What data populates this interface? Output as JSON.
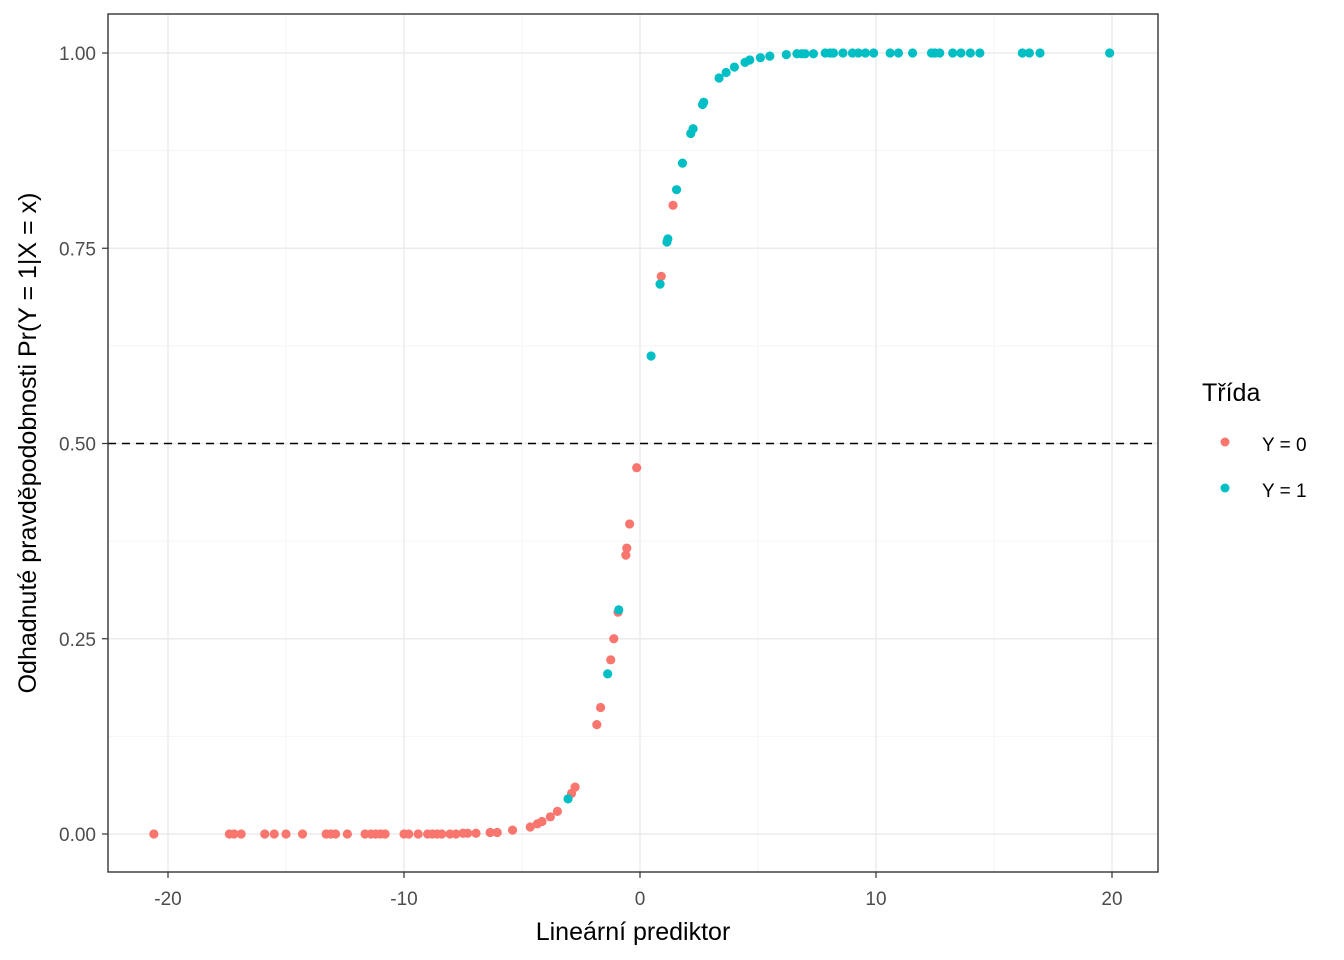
{
  "chart_data": {
    "type": "scatter",
    "xlabel": "Lineární prediktor",
    "ylabel": "Odhadnuté pravděpodobnosti Pr(Y = 1|X = x)",
    "xlim": [
      -22.5,
      22
    ],
    "ylim": [
      -0.05,
      1.05
    ],
    "x_ticks": [
      -20,
      -10,
      0,
      10,
      20
    ],
    "x_tick_labels": [
      "-20",
      "-10",
      "0",
      "10",
      "20"
    ],
    "y_ticks": [
      0,
      0.25,
      0.5,
      0.75,
      1
    ],
    "y_tick_labels": [
      "0.00",
      "0.25",
      "0.50",
      "0.75",
      "1.00"
    ],
    "grid": true,
    "reference_line": {
      "y": 0.5,
      "style": "dashed"
    },
    "legend": {
      "title": "Třída",
      "placement": "right",
      "entries": [
        {
          "label": "Y = 0",
          "color": "#F8766D"
        },
        {
          "label": "Y = 1",
          "color": "#00BFC4"
        }
      ]
    },
    "series": [
      {
        "name": "Y = 0",
        "color": "#F8766D",
        "points": [
          [
            -20.6,
            0
          ],
          [
            -17.4,
            0
          ],
          [
            -17.2,
            0
          ],
          [
            -16.9,
            0
          ],
          [
            -15.9,
            0
          ],
          [
            -15.5,
            0
          ],
          [
            -15.0,
            0
          ],
          [
            -14.3,
            0
          ],
          [
            -13.3,
            0
          ],
          [
            -13.1,
            0
          ],
          [
            -12.9,
            0
          ],
          [
            -12.4,
            0
          ],
          [
            -11.65,
            0
          ],
          [
            -11.4,
            0
          ],
          [
            -11.2,
            0
          ],
          [
            -11.0,
            0
          ],
          [
            -10.8,
            0
          ],
          [
            -10.0,
            0
          ],
          [
            -9.8,
            0
          ],
          [
            -9.4,
            0
          ],
          [
            -9.0,
            0
          ],
          [
            -8.8,
            0
          ],
          [
            -8.6,
            0
          ],
          [
            -8.4,
            0
          ],
          [
            -8.05,
            0
          ],
          [
            -7.8,
            0
          ],
          [
            -7.5,
            0.001
          ],
          [
            -7.3,
            0.001
          ],
          [
            -6.95,
            0.001
          ],
          [
            -6.35,
            0.002
          ],
          [
            -6.05,
            0.002
          ],
          [
            -5.4,
            0.005
          ],
          [
            -4.65,
            0.009
          ],
          [
            -4.35,
            0.013
          ],
          [
            -4.15,
            0.016
          ],
          [
            -3.8,
            0.022
          ],
          [
            -3.5,
            0.029
          ],
          [
            -2.9,
            0.052
          ],
          [
            -2.75,
            0.06
          ],
          [
            -1.83,
            0.14
          ],
          [
            -1.67,
            0.162
          ],
          [
            -1.24,
            0.223
          ],
          [
            -1.11,
            0.25
          ],
          [
            -0.93,
            0.284
          ],
          [
            -0.6,
            0.357
          ],
          [
            -0.56,
            0.366
          ],
          [
            -0.44,
            0.397
          ],
          [
            -0.14,
            0.469
          ],
          [
            0.9,
            0.714
          ],
          [
            1.4,
            0.805
          ]
        ]
      },
      {
        "name": "Y = 1",
        "color": "#00BFC4",
        "points": [
          [
            -3.05,
            0.045
          ],
          [
            -1.37,
            0.205
          ],
          [
            -0.9,
            0.287
          ],
          [
            0.47,
            0.612
          ],
          [
            0.85,
            0.704
          ],
          [
            1.14,
            0.758
          ],
          [
            1.18,
            0.762
          ],
          [
            1.55,
            0.825
          ],
          [
            1.8,
            0.859
          ],
          [
            2.15,
            0.897
          ],
          [
            2.25,
            0.903
          ],
          [
            2.65,
            0.934
          ],
          [
            2.7,
            0.937
          ],
          [
            3.35,
            0.968
          ],
          [
            3.65,
            0.975
          ],
          [
            4.0,
            0.982
          ],
          [
            4.45,
            0.988
          ],
          [
            4.65,
            0.991
          ],
          [
            5.1,
            0.994
          ],
          [
            5.5,
            0.996
          ],
          [
            6.2,
            0.998
          ],
          [
            6.65,
            0.999
          ],
          [
            6.85,
            0.999
          ],
          [
            7.0,
            0.999
          ],
          [
            7.35,
            0.999
          ],
          [
            7.85,
            1
          ],
          [
            8.05,
            1
          ],
          [
            8.2,
            1
          ],
          [
            8.6,
            1
          ],
          [
            9.0,
            1
          ],
          [
            9.25,
            1
          ],
          [
            9.55,
            1
          ],
          [
            9.9,
            1
          ],
          [
            10.6,
            1
          ],
          [
            10.95,
            1
          ],
          [
            11.55,
            1
          ],
          [
            12.35,
            1
          ],
          [
            12.5,
            1
          ],
          [
            12.7,
            1
          ],
          [
            13.25,
            1
          ],
          [
            13.6,
            1
          ],
          [
            14.0,
            1
          ],
          [
            14.4,
            1
          ],
          [
            16.2,
            1
          ],
          [
            16.5,
            1
          ],
          [
            16.95,
            1
          ],
          [
            19.9,
            1
          ]
        ]
      }
    ]
  }
}
